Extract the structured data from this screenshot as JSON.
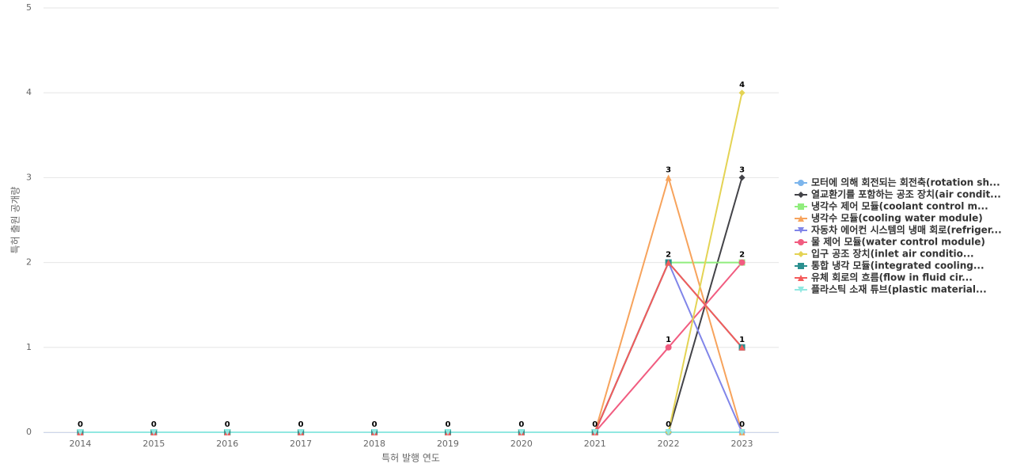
{
  "chart_data": {
    "type": "line",
    "x_label": "특허 발행 연도",
    "y_label": "특허 출원 공개량",
    "categories": [
      "2014",
      "2015",
      "2016",
      "2017",
      "2018",
      "2019",
      "2020",
      "2021",
      "2022",
      "2023"
    ],
    "ylim": [
      0,
      5
    ],
    "yticks": [
      0,
      1,
      2,
      3,
      4,
      5
    ],
    "grid": true,
    "legend": "right",
    "series": [
      {
        "name": "모터에 의해 회전되는 회전축(rotation sh...",
        "color": "#7cb5ec",
        "marker": "circle",
        "values": [
          0,
          0,
          0,
          0,
          0,
          0,
          0,
          0,
          0,
          0
        ]
      },
      {
        "name": "열교환기를 포함하는 공조 장치(air condit...",
        "color": "#434348",
        "marker": "diamond",
        "values": [
          0,
          0,
          0,
          0,
          0,
          0,
          0,
          0,
          0,
          3
        ]
      },
      {
        "name": "냉각수 제어 모듈(coolant control m...",
        "color": "#90ed7d",
        "marker": "square",
        "values": [
          0,
          0,
          0,
          0,
          0,
          0,
          0,
          0,
          2,
          2
        ]
      },
      {
        "name": "냉각수 모듈(cooling water module)",
        "color": "#f7a35c",
        "marker": "triangle",
        "values": [
          0,
          0,
          0,
          0,
          0,
          0,
          0,
          0,
          3,
          0
        ]
      },
      {
        "name": "자동차 에어컨 시스템의 냉매 회로(refriger...",
        "color": "#8085e9",
        "marker": "triangle-down",
        "values": [
          0,
          0,
          0,
          0,
          0,
          0,
          0,
          0,
          2,
          0
        ]
      },
      {
        "name": "물 제어 모듈(water control module)",
        "color": "#f15c80",
        "marker": "circle",
        "values": [
          0,
          0,
          0,
          0,
          0,
          0,
          0,
          0,
          1,
          2
        ]
      },
      {
        "name": "입구 공조 장치(inlet air conditio...",
        "color": "#e4d354",
        "marker": "diamond",
        "values": [
          0,
          0,
          0,
          0,
          0,
          0,
          0,
          0,
          0,
          4
        ]
      },
      {
        "name": "통합 냉각 모듈(integrated cooling...",
        "color": "#2b908f",
        "marker": "square",
        "values": [
          0,
          0,
          0,
          0,
          0,
          0,
          0,
          0,
          2,
          1
        ]
      },
      {
        "name": "유체 회로의 흐름(flow in fluid cir...",
        "color": "#f45b5b",
        "marker": "triangle",
        "values": [
          0,
          0,
          0,
          0,
          0,
          0,
          0,
          0,
          2,
          1
        ]
      },
      {
        "name": "플라스틱 소재 튜브(plastic material...",
        "color": "#91e8e1",
        "marker": "triangle-down",
        "values": [
          0,
          0,
          0,
          0,
          0,
          0,
          0,
          0,
          0,
          0
        ]
      }
    ]
  }
}
